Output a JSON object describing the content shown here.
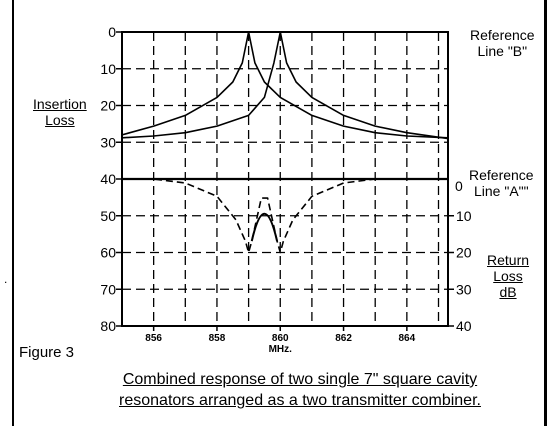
{
  "figure_label": "Figure 3",
  "caption": {
    "line1": "Combined response of two single 7\" square cavity",
    "line2": "resonators arranged as a two transmitter combiner."
  },
  "labels": {
    "left_axis": [
      "Insertion",
      "Loss"
    ],
    "right_axis": [
      "Return",
      "Loss",
      "dB"
    ],
    "reference_b": [
      "Reference",
      "Line \"B\""
    ],
    "reference_a": [
      "Reference",
      "Line \"A\"\""
    ],
    "ref_a_zero": "0",
    "x_unit": "MHz."
  },
  "chart_data": {
    "type": "line",
    "xlabel": "MHz.",
    "xlim": [
      855,
      865.3
    ],
    "x_ticks": [
      856,
      858,
      860,
      862,
      864
    ],
    "left_axis": {
      "label": "Insertion Loss",
      "ylim": [
        0,
        80
      ],
      "ticks": [
        0,
        10,
        20,
        30,
        40,
        50,
        60,
        70,
        80
      ],
      "inverted": true
    },
    "right_axis": {
      "label": "Return Loss dB",
      "ylim": [
        0,
        40
      ],
      "ticks": [
        0,
        10,
        20,
        30,
        40
      ],
      "reference": "Reference Line \"A\"\""
    },
    "grid": "dashed",
    "series": [
      {
        "style": "solid",
        "x": [
          855,
          856,
          857,
          858,
          858.5,
          858.8,
          859,
          859.2,
          859.5,
          860,
          861,
          862,
          863,
          864,
          865.3
        ],
        "y": [
          28,
          25.6,
          22.7,
          17.8,
          13.6,
          8.4,
          0,
          8.4,
          13.6,
          17.8,
          22.7,
          25.6,
          27.4,
          28.3,
          28.8
        ]
      },
      {
        "style": "solid",
        "x": [
          855,
          856,
          857,
          858,
          859,
          859.5,
          859.8,
          860,
          860.2,
          860.5,
          861,
          862,
          863,
          864,
          865.3
        ],
        "y": [
          28.8,
          28.3,
          27.4,
          25.6,
          22.7,
          17.8,
          8.4,
          0,
          8.4,
          13.6,
          17.8,
          22.7,
          25.6,
          27.4,
          29
        ]
      },
      {
        "style": "dashed",
        "x": [
          855,
          856,
          857,
          858,
          858.6,
          858.9,
          859,
          859.1,
          859.4,
          859.6,
          859.9,
          860,
          860.1,
          860.4,
          861,
          862,
          863,
          864,
          865.3
        ],
        "y": [
          0,
          0,
          1.1,
          4.7,
          11.1,
          16.9,
          20,
          16.9,
          5.2,
          5.2,
          16.9,
          20,
          16.9,
          11.1,
          4.7,
          1.1,
          0,
          0,
          0
        ]
      }
    ]
  }
}
